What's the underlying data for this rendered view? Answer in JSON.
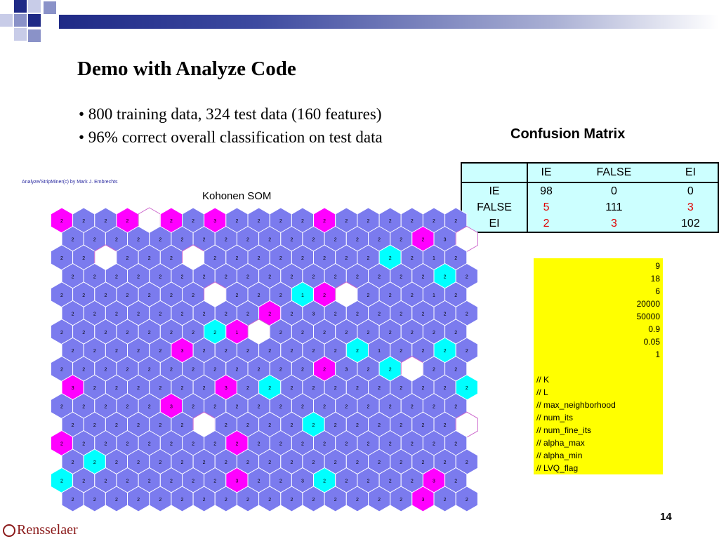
{
  "slide": {
    "title": "Demo with Analyze Code",
    "bullets": [
      "• 800 training data, 324 test data (160 features)",
      "• 96% correct overall classification on test data"
    ],
    "page_number": "14",
    "logo_text": "Rensselaer"
  },
  "confusion_matrix": {
    "title": "Confusion Matrix",
    "columns": [
      "IE",
      "FALSE",
      "EI"
    ],
    "rows": [
      {
        "label": "IE",
        "values": [
          "98",
          "0",
          "0"
        ]
      },
      {
        "label": "FALSE",
        "values": [
          "5",
          "111",
          "3"
        ]
      },
      {
        "label": "EI",
        "values": [
          "2",
          "3",
          "102"
        ]
      }
    ],
    "highlight_color": "#e00000",
    "background_color": "#ccffff"
  },
  "parameters": {
    "values": [
      "9",
      "18",
      "6",
      "20000",
      "50000",
      "0.9",
      "0.05",
      "1"
    ],
    "comments": [
      "// K",
      "// L",
      "// max_neighborhood",
      "// num_its",
      "// num_fine_its",
      "// alpha_max",
      "// alpha_min",
      "// LVQ_flag"
    ],
    "background_color": "#ffff00"
  },
  "som": {
    "credit": "Analyze/StripMiner(c) by Mark J. Embrechts",
    "title": "Kohonen SOM",
    "colors": {
      "purple": "#7b7bee",
      "magenta": "#ff00ff",
      "cyan": "#00ffff",
      "white": "#ffffff"
    },
    "grid": [
      "MPPMWMPMPPPPMPPPPPP",
      "PPPPPPPPPPPPPPPPMPW",
      "PPWPPPWPPPPPPPPCPPP",
      "PPPPPPPPPPPPPPPPPCP",
      "PPPPPPPWPPPCMWPPPPP",
      "PPPPPPPPPMPPPPPPPPP",
      "PPPPPPPCMWPPPPPPPPP",
      "PPPPPMPPPPPPPCPPPCP",
      "PPPPPPPPPPPPMPPCWPP",
      "MPPPPPPMPCPPPPPPPPC",
      "PPPPPMPPPPPPPPPPPPP",
      "PPPPPPWPPPPCPPPPPPW",
      "MPPPPPPPMPPPPPPPPPP",
      "PCPPPPPPPPPPPPPPPPP",
      "CPPPPPPPMPPPCPPPPMP",
      "PPPPPPPPPPPPPPPPMPP"
    ],
    "labels": [
      "2222322322222222222",
      "2222222222222222232",
      "2222222222222222212",
      "2222222222222222222",
      "2222222222212222212",
      "2222222222232222222",
      "2222222213222222222",
      "2222232222222212222",
      "2222222222222322122",
      "3222222322222222222",
      "2222232222222222222",
      "2222222222222222222",
      "2222222222222222222",
      "2222222222222222222",
      "2222222232232222232",
      "2222222222222222322"
    ]
  }
}
